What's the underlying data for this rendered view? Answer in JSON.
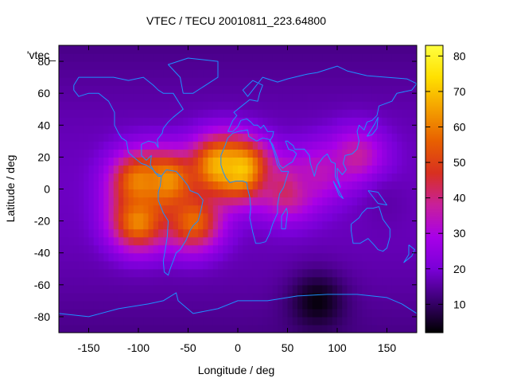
{
  "chart_data": {
    "type": "heatmap",
    "title": "VTEC / TECU 20010811_223.64800",
    "xlabel": "Longitude / deg",
    "ylabel": "Latitude / deg",
    "key_label": "'vtec_",
    "xlim": [
      -180,
      180
    ],
    "ylim": [
      -90,
      90
    ],
    "x_ticks": [
      {
        "value": -150,
        "label": "-150"
      },
      {
        "value": -100,
        "label": "-100"
      },
      {
        "value": -50,
        "label": "-50"
      },
      {
        "value": 0,
        "label": "0"
      },
      {
        "value": 50,
        "label": "50"
      },
      {
        "value": 100,
        "label": "100"
      },
      {
        "value": 150,
        "label": "150"
      }
    ],
    "y_ticks": [
      {
        "value": 80,
        "label": "80"
      },
      {
        "value": 60,
        "label": "60"
      },
      {
        "value": 40,
        "label": "40"
      },
      {
        "value": 20,
        "label": "20"
      },
      {
        "value": 0,
        "label": "0"
      },
      {
        "value": -20,
        "label": "-20"
      },
      {
        "value": -40,
        "label": "-40"
      },
      {
        "value": -60,
        "label": "-60"
      },
      {
        "value": -80,
        "label": "-80"
      }
    ],
    "colorbar": {
      "range": [
        2,
        83
      ],
      "ticks": [
        {
          "value": 10,
          "label": "10"
        },
        {
          "value": 20,
          "label": "20"
        },
        {
          "value": 30,
          "label": "30"
        },
        {
          "value": 40,
          "label": "40"
        },
        {
          "value": 50,
          "label": "50"
        },
        {
          "value": 60,
          "label": "60"
        },
        {
          "value": 70,
          "label": "70"
        },
        {
          "value": 80,
          "label": "80"
        }
      ],
      "colors": [
        "#000000",
        "#3a0070",
        "#7a00d8",
        "#a800e8",
        "#c8209a",
        "#d83020",
        "#e86000",
        "#f4a000",
        "#ffe000",
        "#ffff40"
      ]
    },
    "grid": false,
    "coastline_color": "#1e90ff",
    "grid_resolution_deg": {
      "lon": 5,
      "lat": 5
    },
    "vtec_features": [
      {
        "lon": -100,
        "lat": 5,
        "value": 60
      },
      {
        "lon": -70,
        "lat": 5,
        "value": 64
      },
      {
        "lon": -20,
        "lat": 15,
        "value": 66
      },
      {
        "lon": -100,
        "lat": -20,
        "value": 62
      },
      {
        "lon": -45,
        "lat": -20,
        "value": 58
      },
      {
        "lon": 5,
        "lat": 12,
        "value": 72
      },
      {
        "lon": 50,
        "lat": 0,
        "value": 44
      },
      {
        "lon": 80,
        "lat": 10,
        "value": 34
      },
      {
        "lon": 120,
        "lat": 20,
        "value": 38
      },
      {
        "lon": 150,
        "lat": -10,
        "value": 16
      },
      {
        "lon": 80,
        "lat": -70,
        "value": 3
      }
    ]
  }
}
